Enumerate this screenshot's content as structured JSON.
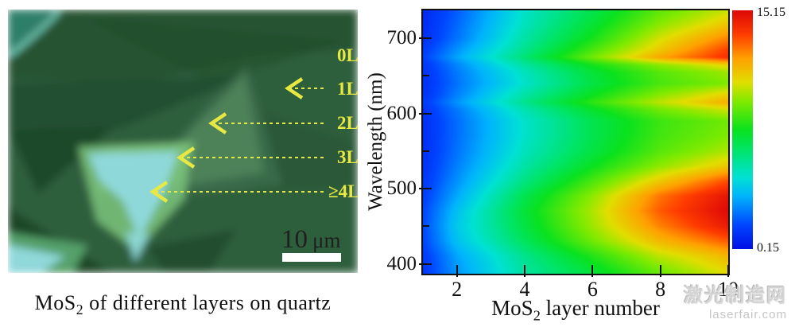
{
  "micrograph": {
    "layer_labels": [
      "0L",
      "1L",
      "2L",
      "3L",
      "≥4L"
    ],
    "scale_value": "10",
    "scale_unit": "μm",
    "caption_prefix": "MoS",
    "caption_sub": "2",
    "caption_suffix": " of different layers on quartz",
    "annotation_color": "#e8e844"
  },
  "chart_data": {
    "type": "heatmap",
    "xlabel_prefix": "MoS",
    "xlabel_sub": "2",
    "xlabel_suffix": " layer number",
    "ylabel": "Wavelength (nm)",
    "xlim": [
      1,
      10
    ],
    "ylim": [
      387,
      737
    ],
    "xticks": [
      2,
      4,
      6,
      8,
      10
    ],
    "yticks": [
      400,
      500,
      600,
      700
    ],
    "yticks_minor": [
      450,
      550,
      650
    ],
    "grid": false,
    "legend": "colorbar-right",
    "colorbar": {
      "vmin": 0.15,
      "vmax": 15.15,
      "max_label": "15.15",
      "min_label": "0.15"
    },
    "x_layers": [
      1,
      2,
      4,
      6,
      8,
      10
    ],
    "wavelengths_nm": [
      390,
      410,
      430,
      450,
      470,
      490,
      510,
      530,
      550,
      570,
      590,
      605,
      615,
      625,
      640,
      655,
      665,
      675,
      685,
      700,
      720,
      740
    ],
    "values": [
      [
        1.2,
        3.0,
        5.5,
        7.2,
        9.2,
        10.8
      ],
      [
        1.3,
        3.2,
        5.8,
        8.0,
        10.2,
        11.6
      ],
      [
        1.6,
        3.8,
        6.6,
        9.2,
        11.6,
        13.2
      ],
      [
        1.7,
        4.0,
        7.0,
        9.8,
        12.6,
        14.6
      ],
      [
        1.6,
        3.8,
        7.2,
        10.0,
        13.2,
        15.1
      ],
      [
        1.4,
        3.3,
        6.8,
        9.6,
        12.8,
        14.8
      ],
      [
        1.2,
        2.9,
        6.0,
        8.6,
        11.2,
        13.4
      ],
      [
        1.1,
        2.6,
        5.4,
        7.6,
        9.6,
        11.2
      ],
      [
        1.0,
        2.4,
        5.0,
        7.0,
        8.8,
        10.0
      ],
      [
        1.0,
        2.3,
        4.8,
        6.8,
        8.5,
        9.4
      ],
      [
        1.0,
        2.3,
        4.8,
        6.8,
        8.4,
        9.2
      ],
      [
        1.1,
        2.5,
        5.2,
        7.4,
        9.2,
        10.4
      ],
      [
        1.3,
        2.9,
        5.8,
        8.2,
        10.2,
        11.8
      ],
      [
        1.1,
        2.6,
        5.4,
        7.6,
        9.5,
        11.0
      ],
      [
        1.0,
        2.4,
        4.8,
        7.0,
        8.6,
        9.4
      ],
      [
        1.1,
        2.5,
        5.0,
        7.2,
        8.8,
        9.8
      ],
      [
        1.2,
        2.7,
        5.5,
        7.8,
        9.6,
        11.0
      ],
      [
        1.5,
        3.2,
        6.2,
        9.2,
        12.0,
        14.0
      ],
      [
        1.3,
        2.9,
        5.8,
        8.6,
        11.2,
        13.6
      ],
      [
        1.0,
        2.4,
        5.4,
        7.8,
        10.5,
        12.6
      ],
      [
        0.9,
        2.2,
        5.0,
        7.2,
        9.5,
        11.2
      ],
      [
        0.8,
        2.0,
        4.8,
        6.8,
        8.8,
        10.2
      ]
    ]
  },
  "watermark": {
    "line1": "激光制造网",
    "line2": "laserfair.com"
  }
}
